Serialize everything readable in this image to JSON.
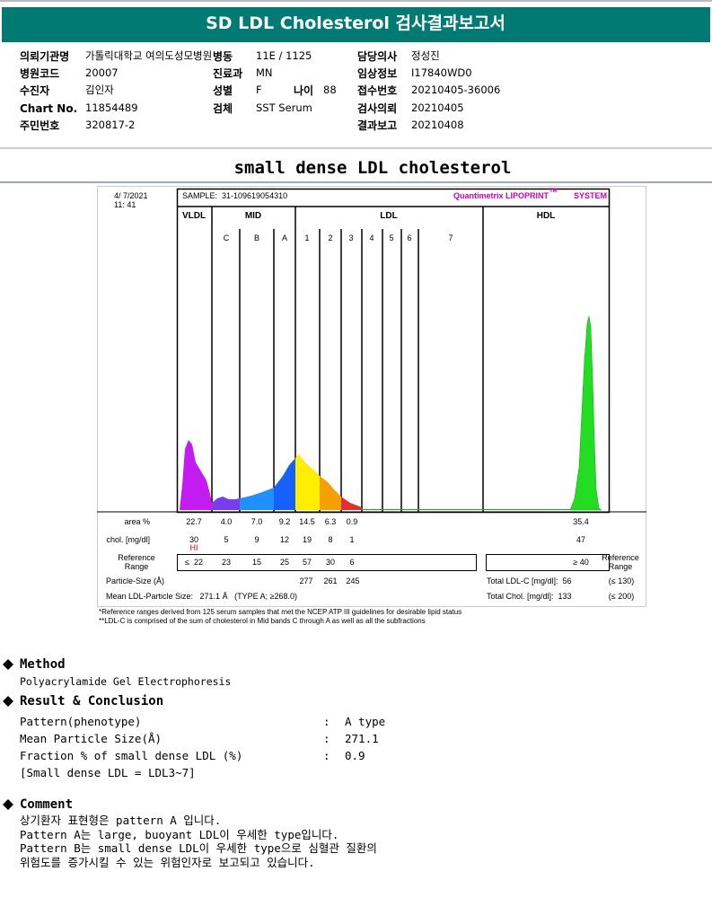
{
  "header": {
    "title": "SD LDL Cholesterol 검사결과보고서"
  },
  "info": {
    "left": [
      [
        "의뢰기관명",
        "가톨릭대학교 여의도성모병원"
      ],
      [
        "병원코드",
        "20007"
      ],
      [
        "수진자",
        "김인자"
      ],
      [
        "Chart No.",
        "11854489"
      ],
      [
        "주민번호",
        "320817-2"
      ]
    ],
    "middle": [
      [
        "병동",
        "11E / 1125"
      ],
      [
        "진료과",
        "MN"
      ],
      [
        "성별",
        "F"
      ],
      [
        "검체",
        "SST Serum"
      ]
    ],
    "age": [
      "나이",
      "88"
    ],
    "right": [
      [
        "담당의사",
        "정성진"
      ],
      [
        "임상정보",
        "I17840WD0"
      ],
      [
        "접수번호",
        "20210405-36006"
      ],
      [
        "검사의뢰",
        "20210405"
      ],
      [
        "결과보고",
        "20210408"
      ]
    ]
  },
  "section_title": "small dense LDL cholesterol",
  "report_image": {
    "date": "4/ 7/2021",
    "time": "11: 41",
    "sample": "SAMPLE:  31-109619054310",
    "brand": "Quantimetrix LIPOPRINT",
    "brand_tm": "TM",
    "brand_end": "SYSTEM",
    "groups": [
      "VLDL",
      "MID",
      "LDL",
      "HDL"
    ],
    "bands": [
      "C",
      "B",
      "A",
      "1",
      "2",
      "3",
      "4",
      "5",
      "6",
      "7"
    ],
    "area": {
      "label": "area %",
      "values": [
        "22.7",
        "4.0",
        "7.0",
        "9.2",
        "14.5",
        "6.3",
        "0.9"
      ],
      "hdl": "35.4"
    },
    "chol": {
      "label": "chol. [mg/dl]",
      "values": [
        "30",
        "5",
        "9",
        "12",
        "19",
        "8",
        "1"
      ],
      "hdl": "47",
      "flag": "HI"
    },
    "reference": {
      "label": [
        "Reference",
        "Range"
      ],
      "values": [
        "≤  22",
        "23",
        "15",
        "25",
        "57",
        "30",
        "6"
      ],
      "hdl": "≥ 40"
    },
    "particle": {
      "label": "Particle-Size (Å)",
      "values": [
        "277",
        "261",
        "245"
      ],
      "total": "Total LDL-C [mg/dl]:  56",
      "limit": "(≤ 130)"
    },
    "mean": {
      "label": "Mean LDL-Particle Size:   271.1 Å   (TYPE A; ≥268.0)",
      "total": "Total Chol. [mg/dl]:  133",
      "limit": "(≤ 200)"
    },
    "footnotes": [
      "*Reference ranges derived from 125 serum samples that met the NCEP ATP III guidelines for desirable lipid status",
      "**LDL-C is comprised of the sum of cholesterol in Mid bands C through A as well as all the subfractions"
    ]
  },
  "method": {
    "heading": "Method",
    "text": "Polyacrylamide Gel Electrophoresis"
  },
  "result": {
    "heading": "Result & Conclusion",
    "separator": ":",
    "items": [
      [
        "Pattern(phenotype)",
        "A type"
      ],
      [
        "Mean Particle Size(Å)",
        "271.1"
      ],
      [
        "Fraction % of small dense LDL (%)",
        "0.9"
      ]
    ],
    "note": "[Small dense LDL = LDL3~7]"
  },
  "comment": {
    "heading": "Comment",
    "lines": [
      "상기환자 표현형은 pattern A 입니다.",
      "Pattern A는 large, buoyant LDL이 우세한 type입니다.",
      "Pattern B는 small dense LDL이 우세한 type으로 심혈관 질환의",
      "위험도를 증가시킬 수 있는 위험인자로 보고되고 있습니다."
    ]
  }
}
